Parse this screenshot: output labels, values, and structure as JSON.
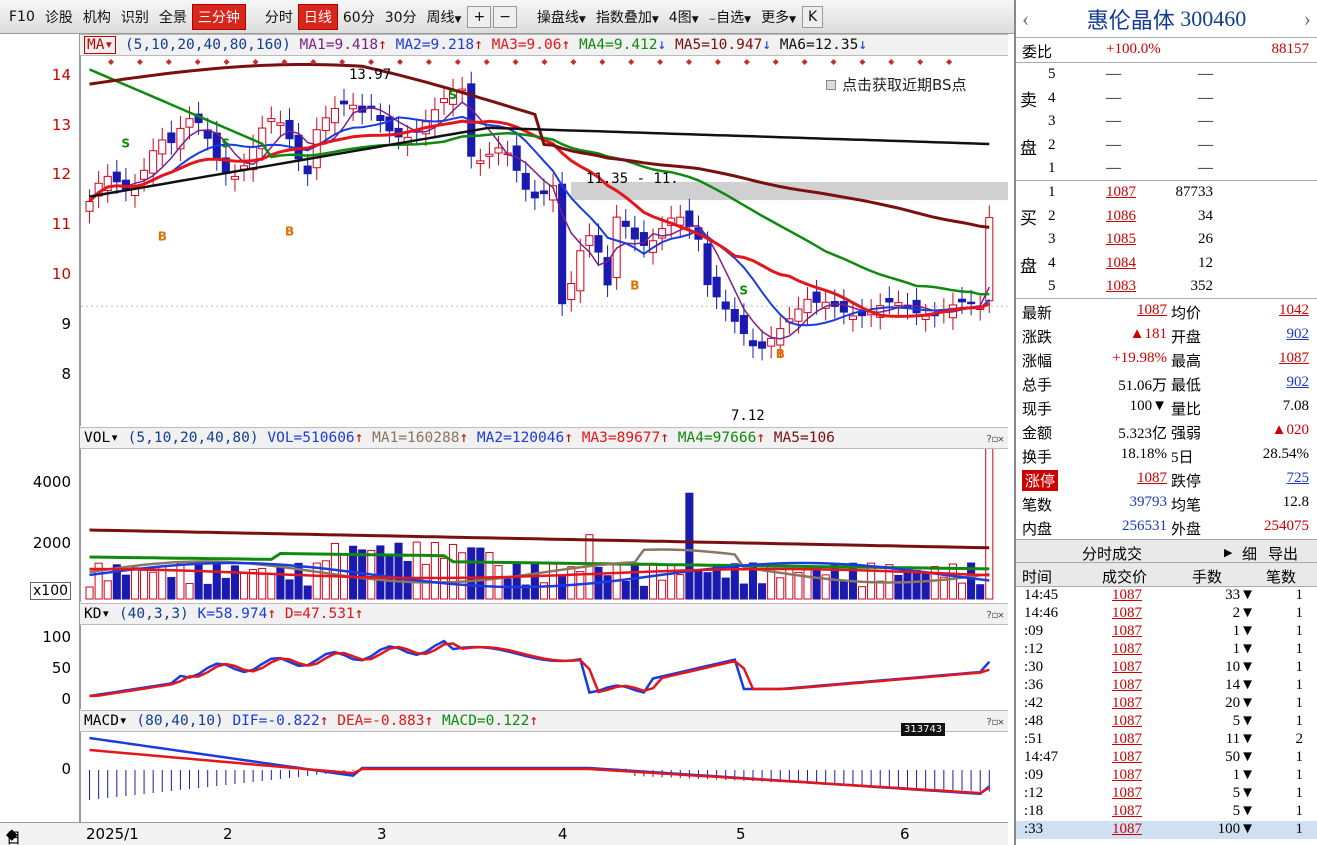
{
  "toolbar": {
    "items": [
      "F10",
      "诊股",
      "机构",
      "识别",
      "全景"
    ],
    "active": "三分钟",
    "periods": [
      "分时",
      "日线",
      "60分",
      "30分"
    ],
    "active_period": "日线",
    "week": "周线",
    "plus": "+",
    "minus": "−",
    "tools": [
      "操盘线",
      "指数叠加",
      "4图",
      "自选",
      "更多"
    ],
    "collapse": "K"
  },
  "ma_bar": {
    "name": "MA",
    "params": "(5,10,20,40,80,160)",
    "ma1": "MA1=9.418",
    "ma2": "MA2=9.218",
    "ma3": "MA3=9.06",
    "ma4": "MA4=9.412",
    "ma5": "MA5=10.947",
    "ma6": "MA6=12.35"
  },
  "price_axis": [
    "14",
    "13",
    "12",
    "11",
    "10",
    "9",
    "8"
  ],
  "annotations": {
    "high": "13.97",
    "low": "7.12",
    "gap": "11.35 - 11.",
    "bs_hint": "点击获取近期BS点",
    "volume_tip": "313743"
  },
  "vol_bar": {
    "name": "VOL",
    "params": "(5,10,20,40,80)",
    "vol": "VOL=510606",
    "ma1": "MA1=160288",
    "ma2": "MA2=120046",
    "ma3": "MA3=89677",
    "ma4": "MA4=97666",
    "ma5": "MA5=106"
  },
  "vol_axis": [
    "4000",
    "2000"
  ],
  "vol_unit": "x100",
  "kd_bar": {
    "name": "KD",
    "params": "(40,3,3)",
    "k": "K=58.974",
    "d": "D=47.531"
  },
  "kd_axis": [
    "100",
    "50",
    "0"
  ],
  "macd_bar": {
    "name": "MACD",
    "params": "(80,40,10)",
    "dif": "DIF=-0.822",
    "dea": "DEA=-0.883",
    "macd": "MACD=0.122"
  },
  "macd_axis": [
    "0"
  ],
  "x_axis": {
    "period": "日线",
    "labels": [
      "2025/1",
      "2",
      "3",
      "4",
      "5",
      "6"
    ]
  },
  "stock": {
    "name": "惠伦晶体",
    "code": "300460"
  },
  "weibi": {
    "label": "委比",
    "ratio": "+100.0%",
    "diff": "88157"
  },
  "sell": {
    "side": "卖盘",
    "levels": [
      {
        "n": "5",
        "p": "—",
        "v": "—"
      },
      {
        "n": "4",
        "p": "—",
        "v": "—"
      },
      {
        "n": "3",
        "p": "—",
        "v": "—"
      },
      {
        "n": "2",
        "p": "—",
        "v": "—"
      },
      {
        "n": "1",
        "p": "—",
        "v": "—"
      }
    ]
  },
  "buy": {
    "side": "买盘",
    "levels": [
      {
        "n": "1",
        "p": "1087",
        "v": "87733"
      },
      {
        "n": "2",
        "p": "1086",
        "v": "34"
      },
      {
        "n": "3",
        "p": "1085",
        "v": "26"
      },
      {
        "n": "4",
        "p": "1084",
        "v": "12"
      },
      {
        "n": "5",
        "p": "1083",
        "v": "352"
      }
    ]
  },
  "quote": [
    {
      "l1": "最新",
      "v1": "1087",
      "l2": "均价",
      "v2": "1042"
    },
    {
      "l1": "涨跌",
      "v1": "▲181",
      "l2": "开盘",
      "v2": "902"
    },
    {
      "l1": "涨幅",
      "v1": "+19.98%",
      "l2": "最高",
      "v2": "1087"
    },
    {
      "l1": "总手",
      "v1": "51.06万",
      "l2": "最低",
      "v2": "902"
    },
    {
      "l1": "现手",
      "v1": "100▼",
      "l2": "量比",
      "v2": "7.08"
    },
    {
      "l1": "金额",
      "v1": "5.323亿",
      "l2": "强弱",
      "v2": "▲020"
    },
    {
      "l1": "换手",
      "v1": "18.18%",
      "l2": "5日",
      "v2": "28.54%"
    },
    {
      "l1": "涨停",
      "v1": "1087",
      "l2": "跌停",
      "v2": "725"
    },
    {
      "l1": "笔数",
      "v1": "39793",
      "l2": "均笔",
      "v2": "12.8"
    },
    {
      "l1": "内盘",
      "v1": "256531",
      "l2": "外盘",
      "v2": "254075"
    }
  ],
  "ticks": {
    "title": "分时成交",
    "buttons": [
      "细",
      "导出"
    ],
    "headers": [
      "时间",
      "成交价",
      "手数",
      "笔数"
    ],
    "rows": [
      {
        "t": "14:45",
        "p": "1087",
        "q": "33▼",
        "n": "1"
      },
      {
        "t": "14:46",
        "p": "1087",
        "q": "2▼",
        "n": "1"
      },
      {
        "t": ":09",
        "p": "1087",
        "q": "1▼",
        "n": "1"
      },
      {
        "t": ":12",
        "p": "1087",
        "q": "1▼",
        "n": "1"
      },
      {
        "t": ":30",
        "p": "1087",
        "q": "10▼",
        "n": "1"
      },
      {
        "t": ":36",
        "p": "1087",
        "q": "14▼",
        "n": "1"
      },
      {
        "t": ":42",
        "p": "1087",
        "q": "20▼",
        "n": "1"
      },
      {
        "t": ":48",
        "p": "1087",
        "q": "5▼",
        "n": "1"
      },
      {
        "t": ":51",
        "p": "1087",
        "q": "11▼",
        "n": "2"
      },
      {
        "t": "14:47",
        "p": "1087",
        "q": "50▼",
        "n": "1"
      },
      {
        "t": ":09",
        "p": "1087",
        "q": "1▼",
        "n": "1"
      },
      {
        "t": ":12",
        "p": "1087",
        "q": "5▼",
        "n": "1"
      },
      {
        "t": ":18",
        "p": "1087",
        "q": "5▼",
        "n": "1"
      },
      {
        "t": ":33",
        "p": "1087",
        "q": "100▼",
        "n": "1"
      }
    ]
  },
  "chart_data": {
    "type": "candlestick",
    "price_range": [
      7.12,
      13.97
    ],
    "last_close": 10.87,
    "series": [
      {
        "name": "MA1",
        "value": 9.418
      },
      {
        "name": "MA2",
        "value": 9.218
      },
      {
        "name": "MA3",
        "value": 9.06
      },
      {
        "name": "MA4",
        "value": 9.412
      },
      {
        "name": "MA5",
        "value": 10.947
      },
      {
        "name": "MA6",
        "value": 12.35
      }
    ],
    "colors": {
      "up": "#d0021b",
      "down": "#1a1ab0",
      "ma1": "#7d1f8a",
      "ma2": "#1a3cdf",
      "ma3": "#e4161b",
      "ma4": "#0e8a0e",
      "ma5": "#7a0f0f",
      "ma6": "#111111",
      "kd_k": "#1a3cdf",
      "kd_d": "#e4161b",
      "vol_ma": "#8a7560"
    }
  }
}
